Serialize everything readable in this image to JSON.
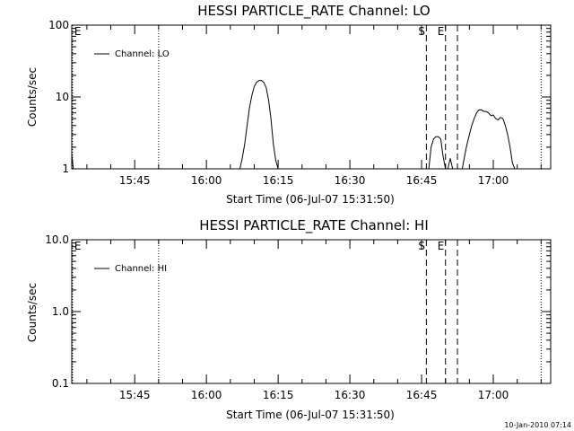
{
  "footer": {
    "timestamp": "10-Jan-2010 07:14"
  },
  "chart_data": [
    {
      "type": "line",
      "title": "HESSI PARTICLE_RATE Channel: LO",
      "xlabel": "Start Time (06-Jul-07 15:31:50)",
      "ylabel": "Counts/sec",
      "yscale": "log",
      "ylim": [
        1,
        100
      ],
      "y_ticks": [
        1,
        10,
        100
      ],
      "y_tick_labels": [
        "1",
        "10",
        "100"
      ],
      "xlim": [
        "15:31:50",
        "17:12:00"
      ],
      "x_tick_labels": [
        "15:45",
        "16:00",
        "16:15",
        "16:30",
        "16:45",
        "17:00"
      ],
      "legend": {
        "position": "top-left",
        "entries": [
          "Channel: LO"
        ]
      },
      "markers": [
        {
          "label": "E",
          "style": "dotted",
          "time": "15:32:00"
        },
        {
          "label": "",
          "style": "dotted",
          "time": "15:50:00"
        },
        {
          "label": "S",
          "style": "dashed",
          "time": "16:46:00"
        },
        {
          "label": "E",
          "style": "dashed",
          "time": "16:50:00"
        },
        {
          "label": "",
          "style": "dashed",
          "time": "16:52:30"
        },
        {
          "label": "",
          "style": "dotted",
          "time": "17:10:00"
        }
      ],
      "series": [
        {
          "segments": [
            [
              [
                "15:31:50",
                1.6
              ],
              [
                "15:32:10",
                1.0
              ]
            ],
            [
              [
                "16:07:00",
                1.0
              ],
              [
                "16:07:30",
                1.4
              ],
              [
                "16:08:00",
                2.2
              ],
              [
                "16:08:30",
                4.0
              ],
              [
                "16:09:00",
                7.0
              ],
              [
                "16:09:30",
                10.5
              ],
              [
                "16:10:00",
                14.0
              ],
              [
                "16:10:30",
                16.0
              ],
              [
                "16:11:00",
                17.0
              ],
              [
                "16:11:30",
                17.0
              ],
              [
                "16:12:00",
                16.0
              ],
              [
                "16:12:30",
                13.5
              ],
              [
                "16:13:00",
                9.0
              ],
              [
                "16:13:30",
                5.0
              ],
              [
                "16:14:00",
                2.2
              ],
              [
                "16:14:30",
                1.3
              ],
              [
                "16:15:00",
                1.0
              ]
            ],
            [
              [
                "16:46:30",
                1.0
              ],
              [
                "16:47:00",
                2.0
              ],
              [
                "16:47:30",
                2.6
              ],
              [
                "16:48:00",
                2.8
              ],
              [
                "16:48:30",
                2.8
              ],
              [
                "16:49:00",
                2.6
              ],
              [
                "16:49:30",
                1.5
              ],
              [
                "16:50:00",
                1.0
              ]
            ],
            [
              [
                "16:50:30",
                1.0
              ],
              [
                "16:51:00",
                1.4
              ],
              [
                "16:51:30",
                1.0
              ]
            ],
            [
              [
                "16:53:30",
                1.0
              ],
              [
                "16:54:00",
                1.5
              ],
              [
                "16:54:30",
                2.2
              ],
              [
                "16:55:00",
                3.0
              ],
              [
                "16:55:30",
                4.0
              ],
              [
                "16:56:00",
                5.0
              ],
              [
                "16:56:30",
                6.0
              ],
              [
                "16:57:00",
                6.6
              ],
              [
                "16:57:30",
                6.6
              ],
              [
                "16:58:00",
                6.3
              ],
              [
                "16:58:30",
                6.3
              ],
              [
                "16:59:00",
                6.0
              ],
              [
                "16:59:30",
                5.5
              ],
              [
                "17:00:00",
                5.6
              ],
              [
                "17:00:30",
                5.0
              ],
              [
                "17:01:00",
                4.8
              ],
              [
                "17:01:30",
                5.2
              ],
              [
                "17:02:00",
                5.0
              ],
              [
                "17:02:30",
                4.0
              ],
              [
                "17:03:00",
                3.0
              ],
              [
                "17:03:30",
                2.0
              ],
              [
                "17:04:00",
                1.2
              ],
              [
                "17:04:30",
                1.0
              ]
            ]
          ]
        }
      ]
    },
    {
      "type": "line",
      "title": "HESSI PARTICLE_RATE Channel: HI",
      "xlabel": "Start Time (06-Jul-07 15:31:50)",
      "ylabel": "Counts/sec",
      "yscale": "log",
      "ylim": [
        0.1,
        10
      ],
      "y_ticks": [
        0.1,
        1,
        10
      ],
      "y_tick_labels": [
        "0.1",
        "1.0",
        "10.0"
      ],
      "xlim": [
        "15:31:50",
        "17:12:00"
      ],
      "x_tick_labels": [
        "15:45",
        "16:00",
        "16:15",
        "16:30",
        "16:45",
        "17:00"
      ],
      "legend": {
        "position": "top-left",
        "entries": [
          "Channel: HI"
        ]
      },
      "markers": [
        {
          "label": "E",
          "style": "dotted",
          "time": "15:32:00"
        },
        {
          "label": "",
          "style": "dotted",
          "time": "15:50:00"
        },
        {
          "label": "S",
          "style": "dashed",
          "time": "16:46:00"
        },
        {
          "label": "E",
          "style": "dashed",
          "time": "16:50:00"
        },
        {
          "label": "",
          "style": "dashed",
          "time": "16:52:30"
        },
        {
          "label": "",
          "style": "dotted",
          "time": "17:10:00"
        }
      ],
      "series": [
        {
          "segments": []
        }
      ]
    }
  ]
}
